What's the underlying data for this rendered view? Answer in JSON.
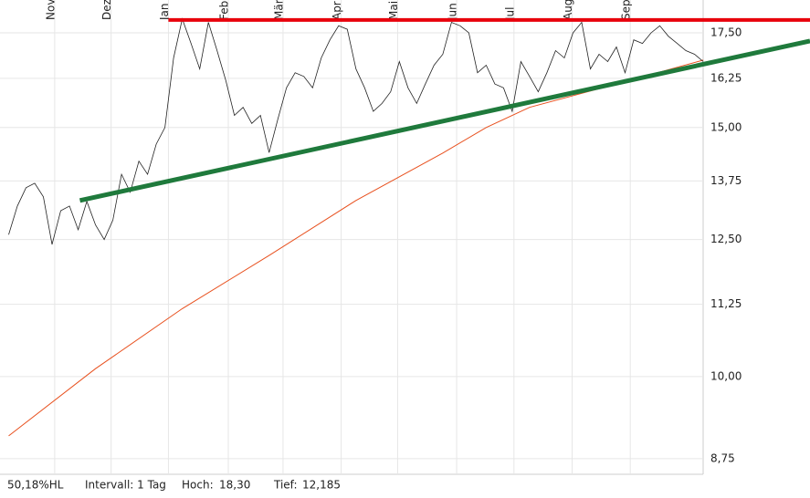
{
  "chart_data": {
    "type": "line",
    "log": true,
    "grid": true,
    "xlim": [
      -1,
      92.3
    ],
    "ylim": [
      8.53,
      18.46
    ],
    "xticks": [
      {
        "value": 5.3,
        "label": "Nov"
      },
      {
        "value": 11.8,
        "label": "Dez"
      },
      {
        "value": 18.4,
        "label": "Jan"
      },
      {
        "value": 25.3,
        "label": "Feb"
      },
      {
        "value": 31.6,
        "label": "Mär"
      },
      {
        "value": 38.3,
        "label": "Apr"
      },
      {
        "value": 44.8,
        "label": "Mai"
      },
      {
        "value": 51.6,
        "label": "Jun"
      },
      {
        "value": 58.2,
        "label": "Jul"
      },
      {
        "value": 64.9,
        "label": "Aug"
      },
      {
        "value": 71.6,
        "label": "Sep"
      }
    ],
    "yticks": [
      {
        "value": 17.5,
        "label": "17,50"
      },
      {
        "value": 16.25,
        "label": "16,25"
      },
      {
        "value": 15,
        "label": "15,00"
      },
      {
        "value": 13.75,
        "label": "13,75"
      },
      {
        "value": 12.5,
        "label": "12,50"
      },
      {
        "value": 11.25,
        "label": "11,25"
      },
      {
        "value": 10,
        "label": "10,00"
      },
      {
        "value": 8.75,
        "label": "8,75"
      }
    ],
    "series": [
      {
        "color": "#e8501e",
        "width": 1,
        "x": [
          0,
          10,
          20,
          30,
          40,
          50,
          55,
          60,
          70,
          80
        ],
        "values": [
          9.08,
          10.13,
          11.17,
          12.18,
          13.32,
          14.39,
          15.0,
          15.5,
          16.1,
          16.74
        ]
      },
      {
        "color": "#222222",
        "width": 0.8,
        "x": [
          0,
          1,
          2,
          3,
          4,
          5,
          6,
          7,
          8,
          9,
          10,
          11,
          12,
          13,
          14,
          15,
          16,
          17,
          18,
          19,
          20,
          21,
          22,
          23,
          24,
          25,
          26,
          27,
          28,
          29,
          30,
          31,
          32,
          33,
          34,
          35,
          36,
          37,
          38,
          39,
          40,
          41,
          42,
          43,
          44,
          45,
          46,
          47,
          48,
          49,
          50,
          51,
          52,
          53,
          54,
          55,
          56,
          57,
          58,
          59,
          60,
          61,
          62,
          63,
          64,
          65,
          66,
          67,
          68,
          69,
          70,
          71,
          72,
          73,
          74,
          75,
          76,
          77,
          78,
          79,
          80
        ],
        "values": [
          12.6,
          13.2,
          13.6,
          13.7,
          13.4,
          12.4,
          13.1,
          13.2,
          12.7,
          13.3,
          12.8,
          12.5,
          12.9,
          13.9,
          13.5,
          14.2,
          13.9,
          14.6,
          15.0,
          16.8,
          17.9,
          17.2,
          16.5,
          17.8,
          17.0,
          16.2,
          15.3,
          15.5,
          15.1,
          15.3,
          14.4,
          15.2,
          16.0,
          16.4,
          16.3,
          16.0,
          16.8,
          17.3,
          17.7,
          17.6,
          16.5,
          16.0,
          15.4,
          15.6,
          15.9,
          16.7,
          16.0,
          15.6,
          16.1,
          16.6,
          16.9,
          17.8,
          17.7,
          17.5,
          16.4,
          16.6,
          16.1,
          16.0,
          15.4,
          16.7,
          16.3,
          15.9,
          16.4,
          17.0,
          16.8,
          17.5,
          17.8,
          16.5,
          16.9,
          16.7,
          17.1,
          16.4,
          17.3,
          17.2,
          17.5,
          17.7,
          17.4,
          17.2,
          17.0,
          16.9,
          16.7
        ]
      },
      {
        "color": "#e8000b",
        "width": 4,
        "x": [
          18.4,
          92.3
        ],
        "values": [
          17.87,
          17.87
        ]
      },
      {
        "color": "#1f7a3c",
        "width": 5,
        "x": [
          8.2,
          92.3
        ],
        "values": [
          13.32,
          17.27
        ]
      }
    ]
  },
  "footer": {
    "hl": "50,18%HL",
    "interval": "Intervall: 1 Tag",
    "high_label": "Hoch:",
    "high": "18,30",
    "low_label": "Tief:",
    "low": "12,185"
  }
}
